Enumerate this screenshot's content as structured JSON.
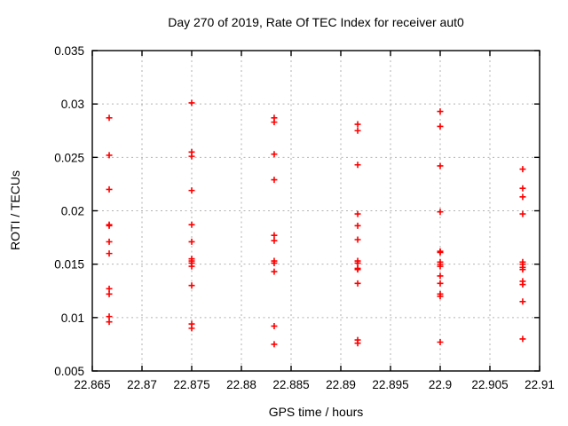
{
  "chart_data": {
    "type": "scatter",
    "title": "Day 270 of 2019, Rate Of TEC Index for receiver aut0",
    "xlabel": "GPS time / hours",
    "ylabel": "ROTI / TECUs",
    "xlim": [
      22.865,
      22.91
    ],
    "ylim": [
      0.005,
      0.035
    ],
    "grid": true,
    "legend": "none",
    "marker_shape": "plus",
    "marker_color": "#ff0000",
    "grid_color": "#b2b2b2",
    "border_color": "#000000",
    "xticks": [
      22.865,
      22.87,
      22.875,
      22.88,
      22.885,
      22.89,
      22.895,
      22.9,
      22.905,
      22.91
    ],
    "xtick_labels": [
      "22.865",
      "22.87",
      "22.875",
      "22.88",
      "22.885",
      "22.89",
      "22.895",
      "22.9",
      "22.905",
      "22.91"
    ],
    "yticks": [
      0.005,
      0.01,
      0.015,
      0.02,
      0.025,
      0.03,
      0.035
    ],
    "ytick_labels": [
      "0.005",
      "0.01",
      "0.015",
      "0.02",
      "0.025",
      "0.03",
      "0.035"
    ],
    "series": [
      {
        "name": "ROTI",
        "clusters": [
          {
            "x": 22.8667,
            "y": [
              0.0287,
              0.0252,
              0.022,
              0.0187,
              0.0186,
              0.0171,
              0.016,
              0.0127,
              0.0122,
              0.0101,
              0.0096
            ]
          },
          {
            "x": 22.875,
            "y": [
              0.0301,
              0.0255,
              0.0251,
              0.0219,
              0.0187,
              0.0171,
              0.0155,
              0.0153,
              0.0151,
              0.0148,
              0.013,
              0.0094,
              0.009
            ]
          },
          {
            "x": 22.8833,
            "y": [
              0.0287,
              0.0283,
              0.0253,
              0.0229,
              0.0177,
              0.0172,
              0.0153,
              0.0151,
              0.0143,
              0.0092,
              0.0075
            ]
          },
          {
            "x": 22.8917,
            "y": [
              0.0281,
              0.0275,
              0.0243,
              0.0197,
              0.0186,
              0.0173,
              0.0153,
              0.0151,
              0.0146,
              0.0145,
              0.0132,
              0.0079,
              0.0076
            ]
          },
          {
            "x": 22.9,
            "y": [
              0.0293,
              0.0279,
              0.0242,
              0.0199,
              0.0162,
              0.0161,
              0.0152,
              0.015,
              0.0148,
              0.0139,
              0.0132,
              0.0122,
              0.012,
              0.0077
            ]
          },
          {
            "x": 22.9083,
            "y": [
              0.0239,
              0.0221,
              0.0213,
              0.0197,
              0.0152,
              0.015,
              0.0147,
              0.0145,
              0.0134,
              0.0131,
              0.0115,
              0.008
            ]
          }
        ]
      }
    ]
  }
}
